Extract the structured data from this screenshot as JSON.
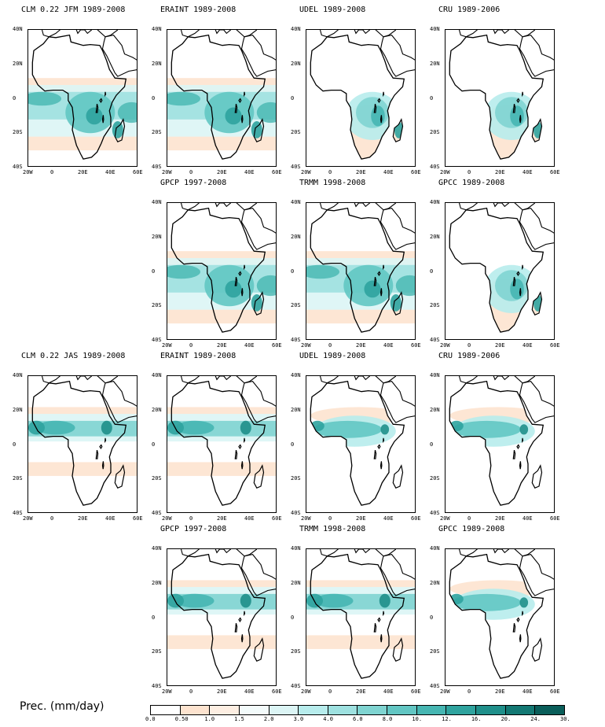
{
  "panels": [
    {
      "title": "CLM 0.22 JFM 1989-2008",
      "season": "JFM",
      "pattern": "wet_south_model"
    },
    {
      "title": "ERAINT 1989-2008",
      "season": "JFM",
      "pattern": "wet_south_model"
    },
    {
      "title": "UDEL 1989-2008",
      "season": "JFM",
      "pattern": "wet_south_land"
    },
    {
      "title": "CRU 1989-2006",
      "season": "JFM",
      "pattern": "wet_south_land"
    },
    {
      "title": "GPCP 1997-2008",
      "season": "JFM",
      "pattern": "wet_south_model"
    },
    {
      "title": "TRMM 1998-2008",
      "season": "JFM",
      "pattern": "wet_south_model"
    },
    {
      "title": "GPCC 1989-2008",
      "season": "JFM",
      "pattern": "wet_south_land"
    },
    {
      "title": "CLM 0.22 JAS 1989-2008",
      "season": "JAS",
      "pattern": "wet_north_model"
    },
    {
      "title": "ERAINT 1989-2008",
      "season": "JAS",
      "pattern": "wet_north_model"
    },
    {
      "title": "UDEL 1989-2008",
      "season": "JAS",
      "pattern": "wet_north_land"
    },
    {
      "title": "CRU 1989-2006",
      "season": "JAS",
      "pattern": "wet_north_land"
    },
    {
      "title": "GPCP 1997-2008",
      "season": "JAS",
      "pattern": "wet_north_model"
    },
    {
      "title": "TRMM 1998-2008",
      "season": "JAS",
      "pattern": "wet_north_model"
    },
    {
      "title": "GPCC 1989-2008",
      "season": "JAS",
      "pattern": "wet_north_land"
    }
  ],
  "lat_ticks": [
    "40N",
    "20N",
    "0",
    "20S",
    "40S"
  ],
  "lon_ticks": [
    "20W",
    "0",
    "20E",
    "40E",
    "60E"
  ],
  "legend": {
    "label": "Prec. (mm/day)",
    "ticks": [
      "0.0",
      "0.50",
      "1.0",
      "1.5",
      "2.0",
      "3.0",
      "4.0",
      "6.0",
      "8.0",
      "10.",
      "12.",
      "16.",
      "20.",
      "24.",
      "30."
    ],
    "colors": [
      "#ffffff",
      "#fde3cf",
      "#fdeee2",
      "#f3fbfb",
      "#dcf5f5",
      "#b7ecec",
      "#9ee1e0",
      "#7fd4d1",
      "#62c6c3",
      "#46b6b2",
      "#2fa39e",
      "#1f8f8a",
      "#137873",
      "#0a5e5a"
    ]
  }
}
